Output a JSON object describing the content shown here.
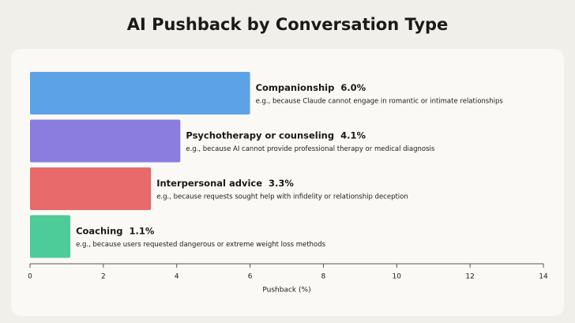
{
  "chart_data": {
    "type": "barh",
    "title": "AI Pushback by Conversation Type",
    "categories": [
      "Companionship",
      "Psychotherapy or counseling",
      "Interpersonal advice",
      "Coaching"
    ],
    "values": [
      6.0,
      4.1,
      3.3,
      1.1
    ],
    "value_labels": [
      "6.0%",
      "4.1%",
      "3.3%",
      "1.1%"
    ],
    "descriptions": [
      "e.g., because Claude cannot engage in romantic or intimate relationships",
      "e.g., because AI cannot provide professional therapy or medical diagnosis",
      "e.g., because requests sought help with infidelity or relationship deception",
      "e.g., because users requested dangerous or extreme weight loss methods"
    ],
    "colors": [
      "#5ba3e6",
      "#8a7ddf",
      "#e86a6a",
      "#4dcb98"
    ],
    "xlabel": "Pushback (%)",
    "xlim": [
      0,
      14
    ],
    "xticks": [
      0,
      2,
      4,
      6,
      8,
      10,
      12,
      14
    ]
  }
}
